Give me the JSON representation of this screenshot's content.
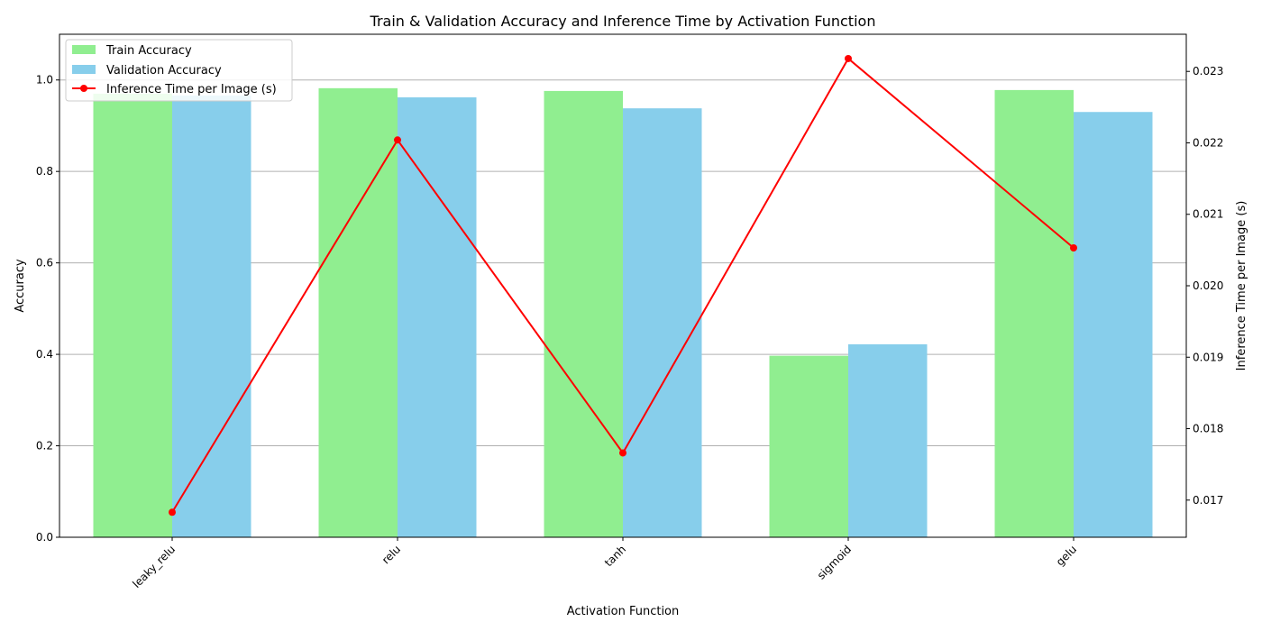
{
  "chart_data": {
    "type": "bar",
    "title": "Train & Validation Accuracy and Inference Time by Activation Function",
    "xlabel": "Activation Function",
    "ylabel": "Accuracy",
    "y2label": "Inference Time per Image (s)",
    "categories": [
      "leaky_relu",
      "relu",
      "tanh",
      "sigmoid",
      "gelu"
    ],
    "ylim": [
      0,
      1.1
    ],
    "yticks": [
      "0.0",
      "0.2",
      "0.4",
      "0.6",
      "0.8",
      "1.0"
    ],
    "y2lim": [
      0.01648,
      0.02352
    ],
    "y2ticks": [
      "0.017",
      "0.018",
      "0.019",
      "0.020",
      "0.021",
      "0.022",
      "0.023"
    ],
    "grid": "horizontal",
    "legend_position": "top-left",
    "series": [
      {
        "name": "Train Accuracy",
        "type": "bar",
        "axis": "left",
        "color": "#90ee90",
        "values": [
          0.97,
          0.982,
          0.976,
          0.397,
          0.978
        ]
      },
      {
        "name": "Validation Accuracy",
        "type": "bar",
        "axis": "left",
        "color": "#87ceeb",
        "values": [
          0.966,
          0.962,
          0.938,
          0.422,
          0.93
        ]
      },
      {
        "name": "Inference Time per Image (s)",
        "type": "line",
        "axis": "right",
        "color": "#ff0000",
        "values": [
          0.01683,
          0.02204,
          0.01766,
          0.02318,
          0.02053
        ]
      }
    ]
  }
}
